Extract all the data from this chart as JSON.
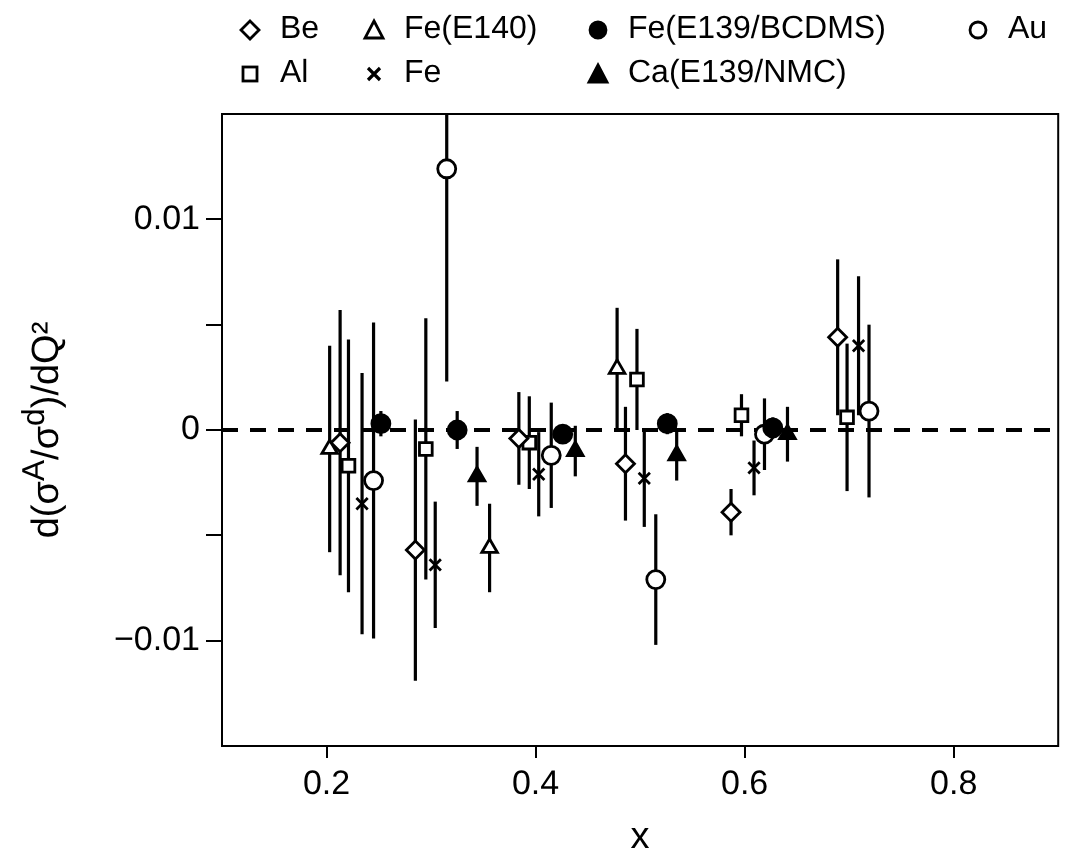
{
  "chart_data": {
    "type": "scatter",
    "xlabel": "x",
    "ylabel": "d(σ$^{A}$/σ$^{d}$)/dQ²",
    "xlim": [
      0.1,
      0.9
    ],
    "xticks": [
      0.2,
      0.4,
      0.6,
      0.8
    ],
    "ylim": [
      -0.015,
      0.015
    ],
    "yticks": [
      {
        "value": -0.01,
        "label": "−0.01"
      },
      {
        "value": -0.005,
        "label": null
      },
      0,
      {
        "value": 0.005,
        "label": null
      },
      0.01
    ],
    "grid": false,
    "legend": "top",
    "ref_lines": [
      {
        "axis": "y",
        "value": 0,
        "line_style": "dashed",
        "color": "#000000"
      }
    ],
    "series": [
      {
        "name": "Be",
        "color": "#ffffff",
        "marker": "diamond",
        "x": [
          0.213,
          0.285,
          0.384,
          0.486,
          0.587,
          0.689
        ],
        "values": [
          -0.0006,
          -0.0057,
          -0.0004,
          -0.0016,
          -0.0039,
          0.0044
        ],
        "errors": [
          0.0063,
          0.0062,
          0.0022,
          0.0027,
          0.0011,
          0.0037
        ]
      },
      {
        "name": "Al",
        "color": "#ffffff",
        "marker": "square",
        "x": [
          0.221,
          0.295,
          0.394,
          0.497,
          0.597,
          0.698
        ],
        "values": [
          -0.0017,
          -0.0009,
          -0.0006,
          0.0024,
          0.0007,
          0.0006
        ],
        "errors": [
          0.006,
          0.0062,
          0.0022,
          0.0024,
          0.001,
          0.0035
        ]
      },
      {
        "name": "Fe(E140)",
        "color": "#ffffff",
        "marker": "triangle",
        "x": [
          0.203,
          0.356,
          0.478
        ],
        "values": [
          -0.0009,
          -0.0056,
          0.0029
        ],
        "errors": [
          0.0049,
          0.0021,
          0.0029
        ]
      },
      {
        "name": "Fe",
        "color": "#000000",
        "marker": "cross",
        "x": [
          0.234,
          0.304,
          0.403,
          0.504,
          0.609,
          0.709
        ],
        "values": [
          -0.0035,
          -0.0064,
          -0.0021,
          -0.0023,
          -0.0018,
          0.004
        ],
        "errors": [
          0.0062,
          0.003,
          0.002,
          0.0023,
          0.0013,
          0.0033
        ]
      },
      {
        "name": "Fe(E139/BCDMS)",
        "color": "#000000",
        "marker": "circle",
        "x": [
          0.252,
          0.325,
          0.426,
          0.526,
          0.627
        ],
        "values": [
          0.0003,
          0,
          -0.0002,
          0.0003,
          0.0001
        ],
        "errors": [
          0.0006,
          0.0009,
          0.0004,
          0.0005,
          0.0005
        ]
      },
      {
        "name": "Ca(E139/NMC)",
        "color": "#000000",
        "marker": "triangle",
        "x": [
          0.344,
          0.438,
          0.535,
          0.641
        ],
        "values": [
          -0.0022,
          -0.001,
          -0.0012,
          -0.0002
        ],
        "errors": [
          0.0014,
          0.0012,
          0.0012,
          0.0013
        ]
      },
      {
        "name": "Au",
        "color": "#ffffff",
        "marker": "circle",
        "x": [
          0.245,
          0.315,
          0.415,
          0.515,
          0.619,
          0.719
        ],
        "values": [
          -0.0024,
          0.0124,
          -0.0012,
          -0.0071,
          -0.0002,
          0.0009
        ],
        "errors": [
          0.0075,
          [
            0.0023,
            0.015
          ],
          0.0025,
          0.0031,
          0.0017,
          0.0041
        ]
      }
    ]
  }
}
